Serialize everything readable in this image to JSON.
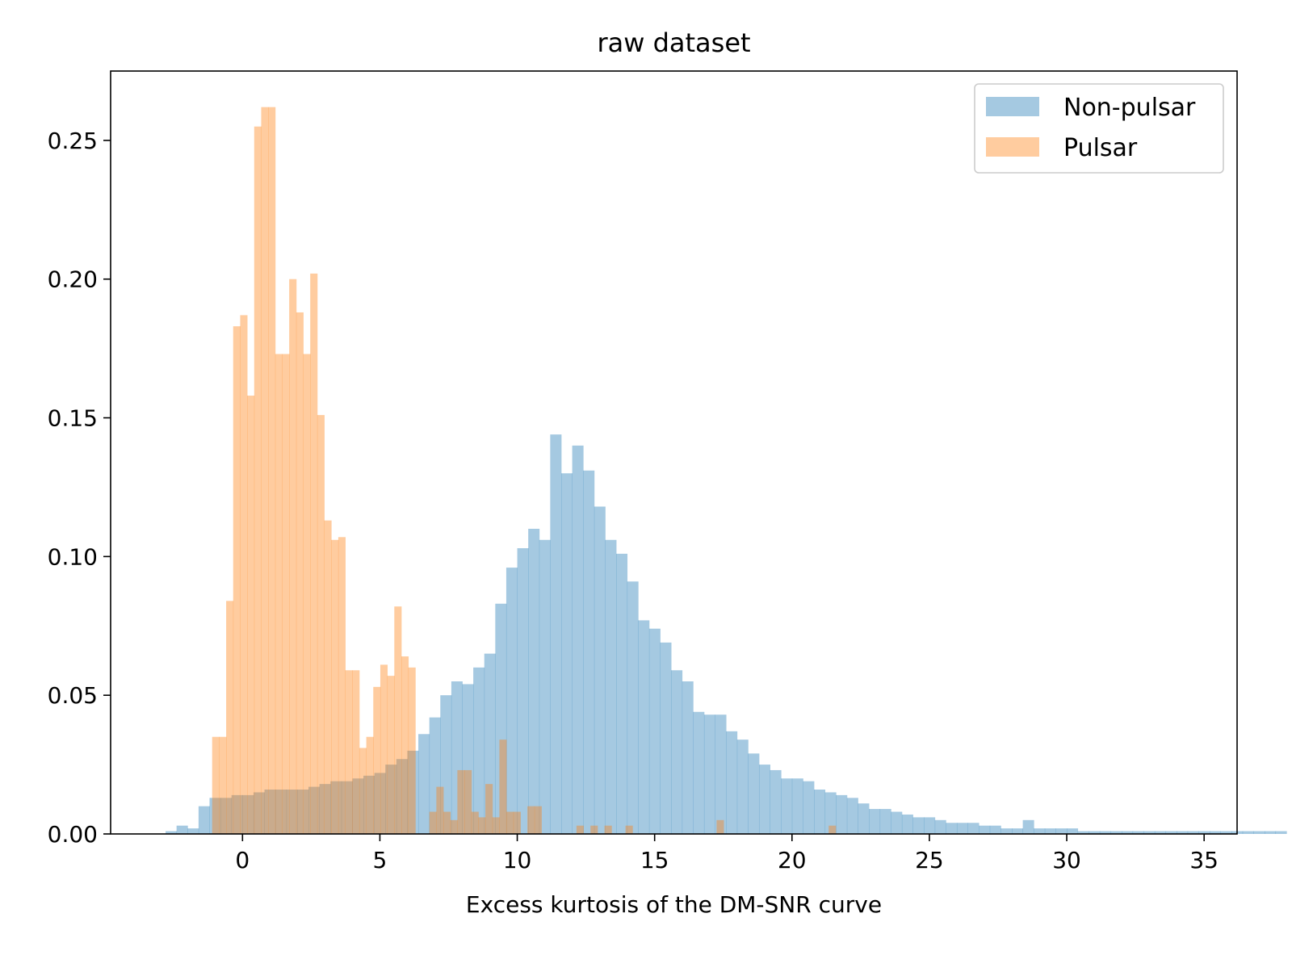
{
  "chart_data": {
    "type": "bar",
    "title": "raw dataset",
    "xlabel": "Excess kurtosis of the DM-SNR curve",
    "ylabel": "",
    "xlim": [
      -4.8,
      36.2
    ],
    "ylim": [
      0,
      0.275
    ],
    "xticks": [
      0,
      5,
      10,
      15,
      20,
      25,
      30,
      35
    ],
    "yticks": [
      0.0,
      0.05,
      0.1,
      0.15,
      0.2,
      0.25
    ],
    "xtick_labels": [
      "0",
      "5",
      "10",
      "15",
      "20",
      "25",
      "30",
      "35"
    ],
    "ytick_labels": [
      "0.00",
      "0.05",
      "0.10",
      "0.15",
      "0.20",
      "0.25"
    ],
    "grid": false,
    "legend_position": "top-right",
    "series": [
      {
        "name": "Non-pulsar",
        "color": "#1f77b4",
        "opacity": 0.4,
        "bin_start": -2.8,
        "bin_width": 0.4,
        "values": [
          0.001,
          0.003,
          0.002,
          0.01,
          0.013,
          0.013,
          0.014,
          0.014,
          0.015,
          0.016,
          0.016,
          0.016,
          0.016,
          0.017,
          0.018,
          0.019,
          0.019,
          0.02,
          0.021,
          0.022,
          0.025,
          0.027,
          0.03,
          0.036,
          0.042,
          0.05,
          0.055,
          0.054,
          0.06,
          0.065,
          0.083,
          0.096,
          0.103,
          0.11,
          0.106,
          0.144,
          0.13,
          0.14,
          0.131,
          0.118,
          0.106,
          0.101,
          0.091,
          0.077,
          0.074,
          0.069,
          0.059,
          0.055,
          0.044,
          0.043,
          0.043,
          0.037,
          0.034,
          0.029,
          0.025,
          0.023,
          0.02,
          0.02,
          0.019,
          0.016,
          0.015,
          0.014,
          0.013,
          0.011,
          0.009,
          0.009,
          0.008,
          0.007,
          0.006,
          0.006,
          0.005,
          0.004,
          0.004,
          0.004,
          0.003,
          0.003,
          0.002,
          0.002,
          0.005,
          0.002,
          0.002,
          0.002,
          0.002,
          0.001,
          0.001,
          0.001,
          0.001,
          0.001,
          0.001,
          0.001,
          0.001,
          0.001,
          0.001,
          0.001,
          0.001,
          0.001,
          0.001,
          0.001,
          0.001,
          0.001,
          0.001,
          0.001
        ]
      },
      {
        "name": "Pulsar",
        "color": "#ff7f0e",
        "opacity": 0.4,
        "bin_start": -1.36,
        "bin_width": 0.255,
        "values": [
          0.0,
          0.035,
          0.035,
          0.084,
          0.183,
          0.187,
          0.158,
          0.255,
          0.262,
          0.262,
          0.173,
          0.173,
          0.2,
          0.188,
          0.173,
          0.202,
          0.151,
          0.113,
          0.106,
          0.107,
          0.059,
          0.059,
          0.031,
          0.035,
          0.053,
          0.061,
          0.057,
          0.082,
          0.064,
          0.06,
          0.0,
          0.0,
          0.008,
          0.017,
          0.008,
          0.005,
          0.023,
          0.023,
          0.008,
          0.006,
          0.018,
          0.006,
          0.034,
          0.008,
          0.008,
          0.0,
          0.01,
          0.01,
          0.0,
          0.0,
          0.0,
          0.0,
          0.0,
          0.003,
          0.0,
          0.003,
          0.0,
          0.003,
          0.0,
          0.0,
          0.003,
          0.0,
          0.0,
          0.0,
          0.0,
          0.0,
          0.0,
          0.0,
          0.0,
          0.0,
          0.0,
          0.0,
          0.0,
          0.005,
          0.0,
          0.0,
          0.0,
          0.0,
          0.0,
          0.0,
          0.0,
          0.0,
          0.0,
          0.0,
          0.0,
          0.0,
          0.0,
          0.0,
          0.0,
          0.003,
          0.0,
          0.0,
          0.0,
          0.0
        ]
      }
    ]
  }
}
